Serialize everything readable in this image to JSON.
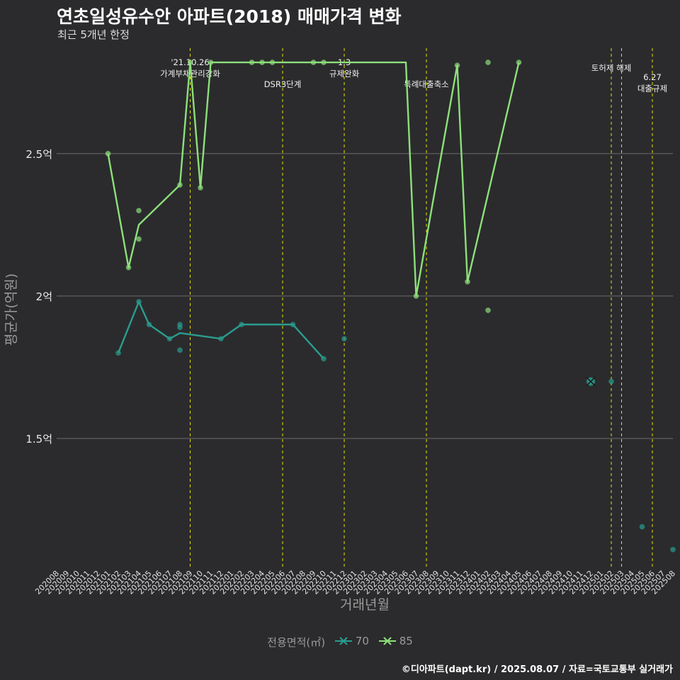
{
  "header": {
    "title": "연초일성유수안 아파트(2018) 매매가격 변화",
    "subtitle": "최근 5개년 한정"
  },
  "legend": {
    "title": "전용면적(㎡)",
    "items": [
      {
        "label": "70",
        "color": "#2a9d8f"
      },
      {
        "label": "85",
        "color": "#8de07a"
      }
    ]
  },
  "caption": "©디아파트(dapt.kr) / 2025.08.07 / 자료=국토교통부 실거래가",
  "chart_data": {
    "type": "line",
    "title": "연초일성유수안 아파트(2018) 매매가격 변화",
    "xlabel": "거래년월",
    "ylabel": "평균가(억원)",
    "ylim": [
      1.05,
      2.87
    ],
    "yticks": [
      {
        "value": 1.5,
        "label": "1.5억"
      },
      {
        "value": 2.0,
        "label": "2억"
      },
      {
        "value": 2.5,
        "label": "2.5억"
      }
    ],
    "categories": [
      "202008",
      "202009",
      "202010",
      "202011",
      "202012",
      "202101",
      "202102",
      "202103",
      "202104",
      "202105",
      "202106",
      "202107",
      "202108",
      "202109",
      "202110",
      "202111",
      "202112",
      "202201",
      "202202",
      "202203",
      "202204",
      "202205",
      "202206",
      "202207",
      "202208",
      "202209",
      "202210",
      "202211",
      "202212",
      "202301",
      "202302",
      "202303",
      "202304",
      "202305",
      "202306",
      "202307",
      "202308",
      "202309",
      "202310",
      "202311",
      "202312",
      "202401",
      "202402",
      "202403",
      "202404",
      "202405",
      "202406",
      "202407",
      "202408",
      "202409",
      "202410",
      "202411",
      "202412",
      "202501",
      "202502",
      "202503",
      "202504",
      "202505",
      "202506",
      "202507",
      "202508"
    ],
    "series": [
      {
        "name": "70",
        "color": "#2a9d8f",
        "line": [
          {
            "x": "202102",
            "y": 1.8
          },
          {
            "x": "202104",
            "y": 1.98
          },
          {
            "x": "202105",
            "y": 1.9
          },
          {
            "x": "202107",
            "y": 1.85
          },
          {
            "x": "202108",
            "y": 1.87
          },
          {
            "x": "202112",
            "y": 1.85
          },
          {
            "x": "202202",
            "y": 1.9
          },
          {
            "x": "202207",
            "y": 1.9
          },
          {
            "x": "202210",
            "y": 1.78
          }
        ],
        "points": [
          {
            "x": "202102",
            "y": 1.8
          },
          {
            "x": "202104",
            "y": 1.98
          },
          {
            "x": "202105",
            "y": 1.9
          },
          {
            "x": "202107",
            "y": 1.85
          },
          {
            "x": "202108",
            "y": 1.89
          },
          {
            "x": "202108",
            "y": 1.9
          },
          {
            "x": "202108",
            "y": 1.81
          },
          {
            "x": "202112",
            "y": 1.85
          },
          {
            "x": "202202",
            "y": 1.9
          },
          {
            "x": "202207",
            "y": 1.9
          },
          {
            "x": "202210",
            "y": 1.78
          },
          {
            "x": "202212",
            "y": 1.85
          },
          {
            "x": "202412",
            "y": 1.7
          },
          {
            "x": "202502",
            "y": 1.7
          },
          {
            "x": "202505",
            "y": 1.19
          },
          {
            "x": "202508",
            "y": 1.11
          }
        ],
        "highlight": {
          "x": "202412",
          "y": 1.7
        }
      },
      {
        "name": "85",
        "color": "#8de07a",
        "line": [
          {
            "x": "202101",
            "y": 2.5
          },
          {
            "x": "202103",
            "y": 2.1
          },
          {
            "x": "202104",
            "y": 2.25
          },
          {
            "x": "202108",
            "y": 2.39
          },
          {
            "x": "202109",
            "y": 2.82
          },
          {
            "x": "202110",
            "y": 2.38
          },
          {
            "x": "202111",
            "y": 2.82
          },
          {
            "x": "202306",
            "y": 2.82
          },
          {
            "x": "202307",
            "y": 2.0
          },
          {
            "x": "202311",
            "y": 2.81
          },
          {
            "x": "202312",
            "y": 2.05
          },
          {
            "x": "202405",
            "y": 2.82
          }
        ],
        "points": [
          {
            "x": "202101",
            "y": 2.5
          },
          {
            "x": "202103",
            "y": 2.1
          },
          {
            "x": "202104",
            "y": 2.3
          },
          {
            "x": "202104",
            "y": 2.2
          },
          {
            "x": "202108",
            "y": 2.39
          },
          {
            "x": "202109",
            "y": 2.82
          },
          {
            "x": "202110",
            "y": 2.38
          },
          {
            "x": "202111",
            "y": 2.82
          },
          {
            "x": "202203",
            "y": 2.82
          },
          {
            "x": "202204",
            "y": 2.82
          },
          {
            "x": "202205",
            "y": 2.82
          },
          {
            "x": "202209",
            "y": 2.82
          },
          {
            "x": "202210",
            "y": 2.82
          },
          {
            "x": "202307",
            "y": 2.0
          },
          {
            "x": "202311",
            "y": 2.81
          },
          {
            "x": "202312",
            "y": 2.05
          },
          {
            "x": "202402",
            "y": 1.95
          },
          {
            "x": "202402",
            "y": 2.82
          },
          {
            "x": "202405",
            "y": 2.82
          }
        ]
      }
    ],
    "events": [
      {
        "x": "202109",
        "lines": [
          "'21.10.26",
          "가계부채관리강화"
        ]
      },
      {
        "x": "202206",
        "lines": [
          "DSR3단계"
        ]
      },
      {
        "x": "202212",
        "lines": [
          "1.3",
          "규제완화"
        ]
      },
      {
        "x": "202308",
        "lines": [
          "특례대출축소"
        ]
      },
      {
        "x": "202502",
        "lines": [
          "토허제 해제"
        ]
      },
      {
        "x": "202503",
        "lines": [
          ""
        ]
      },
      {
        "x": "202506",
        "lines": [
          "6.27",
          "대출규제"
        ]
      }
    ]
  }
}
